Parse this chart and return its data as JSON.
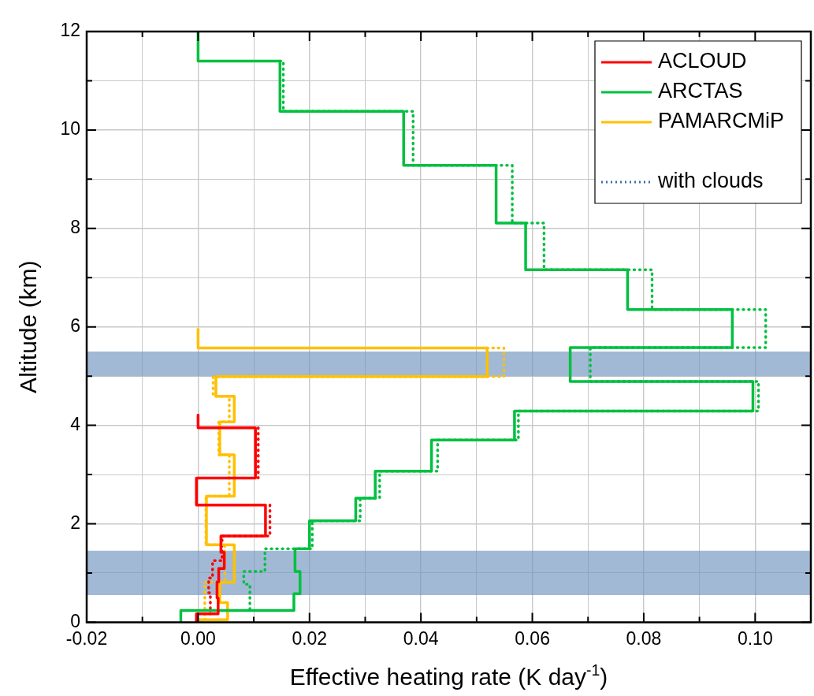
{
  "chart_data": {
    "type": "line",
    "xlabel": "Effective heating rate (K day$^{-1}$)",
    "ylabel": "Altitude (km)",
    "xlim": [
      -0.02,
      0.11
    ],
    "ylim": [
      0,
      12
    ],
    "xticks": [
      {
        "value": -0.02,
        "label": "-0.02"
      },
      {
        "value": -0.01,
        "label": null
      },
      {
        "value": 0,
        "label": "0.00"
      },
      {
        "value": 0.01,
        "label": null
      },
      {
        "value": 0.02,
        "label": "0.02"
      },
      {
        "value": 0.03,
        "label": null
      },
      {
        "value": 0.04,
        "label": "0.04"
      },
      {
        "value": 0.05,
        "label": null
      },
      {
        "value": 0.06,
        "label": "0.06"
      },
      {
        "value": 0.07,
        "label": null
      },
      {
        "value": 0.08,
        "label": "0.08"
      },
      {
        "value": 0.09,
        "label": null
      },
      {
        "value": 0.1,
        "label": "0.10"
      }
    ],
    "yticks": [
      0,
      {
        "value": 1,
        "label": null
      },
      2,
      {
        "value": 3,
        "label": null
      },
      4,
      {
        "value": 5,
        "label": null
      },
      6,
      {
        "value": 7,
        "label": null
      },
      8,
      {
        "value": 9,
        "label": null
      },
      10,
      {
        "value": 11,
        "label": null
      },
      12
    ],
    "grid": true,
    "legend": "top right",
    "marker": "none",
    "bands": [
      {
        "axis": "y",
        "from": 0.55,
        "to": 1.45,
        "color": "#6e93bd"
      },
      {
        "axis": "y",
        "from": 5.0,
        "to": 5.5,
        "color": "#6e93bd"
      }
    ],
    "series": [
      {
        "name": "ACLOUD",
        "color": "#ff0000",
        "line_style": "solid",
        "x": [
          0,
          0,
          0.0103,
          0.0103,
          -0.0003,
          -0.0003,
          0.0121,
          0.0121,
          0.0041,
          0.0041,
          0.0047,
          0.0047,
          0.0037,
          0.0037,
          0.0034,
          0.0034,
          0.0036,
          0.0036,
          -0.0003,
          -0.0003
        ],
        "values": [
          4.21,
          3.95,
          3.95,
          2.93,
          2.93,
          2.38,
          2.38,
          1.75,
          1.75,
          1.42,
          1.42,
          1.09,
          1.09,
          0.82,
          0.82,
          0.49,
          0.49,
          0.17,
          0.17,
          0
        ]
      },
      {
        "name": "ARCTAS",
        "color": "#00c040",
        "line_style": "solid",
        "x": [
          0,
          0,
          0.0147,
          0.0147,
          0.0369,
          0.0369,
          0.0535,
          0.0535,
          0.0588,
          0.0588,
          0.0771,
          0.0771,
          0.0959,
          0.0959,
          0.0668,
          0.0668,
          0.0996,
          0.0996,
          0.0568,
          0.0568,
          0.0419,
          0.0419,
          0.0318,
          0.0318,
          0.0283,
          0.0283,
          0.02,
          0.02,
          0.0174,
          0.0174,
          0.0183,
          0.0183,
          0.0172,
          0.0172,
          -0.0031,
          -0.0031
        ],
        "values": [
          12,
          11.4,
          11.4,
          10.38,
          10.38,
          9.28,
          9.28,
          8.11,
          8.11,
          7.16,
          7.16,
          6.35,
          6.35,
          5.58,
          5.58,
          4.89,
          4.89,
          4.29,
          4.29,
          3.7,
          3.7,
          3.07,
          3.07,
          2.52,
          2.52,
          2.06,
          2.06,
          1.49,
          1.49,
          1.03,
          1.03,
          0.58,
          0.58,
          0.24,
          0.24,
          0
        ]
      },
      {
        "name": "PAMARCMiP",
        "color": "#ffc000",
        "line_style": "solid",
        "x": [
          0,
          0,
          0.0519,
          0.0519,
          0.0032,
          0.0032,
          0.0065,
          0.0065,
          0.0039,
          0.0039,
          0.0065,
          0.0065,
          0.0015,
          0.0015,
          0.0065,
          0.0065,
          0.0039,
          0.0039,
          0.0053,
          0.0053,
          0,
          0
        ],
        "values": [
          5.95,
          5.57,
          5.57,
          4.99,
          4.99,
          4.59,
          4.59,
          4.07,
          4.07,
          3.4,
          3.4,
          2.56,
          2.56,
          1.57,
          1.57,
          0.81,
          0.81,
          0.4,
          0.4,
          0.05,
          0.05,
          0
        ]
      },
      {
        "color": "#ff0000",
        "line_style": "dotted",
        "x": [
          0.0108,
          0.0108,
          null,
          0.0129,
          0.0129,
          0.0043,
          0.0043,
          0.0026,
          0.0026,
          0.0019,
          0.0019,
          0.0022,
          0.0022
        ],
        "values": [
          3.95,
          2.93,
          null,
          2.38,
          1.75,
          1.75,
          1.25,
          1.25,
          0.9,
          0.9,
          0.6,
          0.6,
          0.17
        ]
      },
      {
        "color": "#00c040",
        "line_style": "dotted",
        "x": [
          0.0147,
          0.0153,
          0.0153,
          0.0386,
          0.0386,
          0.0564,
          0.0564,
          0.0621,
          0.0621,
          0.0815,
          0.0815,
          0.1019,
          0.1019,
          0.0704,
          0.0704,
          0.1006,
          0.1006,
          0.0575,
          0.0575,
          0.043,
          0.043,
          0.0326,
          0.0326,
          0.0291,
          0.0291,
          0.0205,
          0.0205,
          0.012,
          0.012,
          0.0082,
          0.0082,
          0.0093,
          0.0093
        ],
        "values": [
          11.4,
          11.4,
          10.38,
          10.38,
          9.28,
          9.28,
          8.11,
          8.11,
          7.16,
          7.16,
          6.35,
          6.35,
          5.58,
          5.58,
          4.89,
          4.89,
          4.29,
          4.29,
          3.7,
          3.7,
          3.07,
          3.07,
          2.52,
          2.52,
          2.06,
          2.06,
          1.49,
          1.49,
          1.03,
          1.03,
          0.77,
          0.77,
          0.24
        ]
      },
      {
        "color": "#ffc000",
        "line_style": "dotted",
        "x": [
          0.0519,
          0.0549,
          0.0549,
          0.0027,
          0.0027,
          0.0056,
          0.0056,
          0.0037,
          0.0037,
          0.0056,
          0.0056,
          0.0014,
          0.0014,
          0.0048,
          0.0048,
          0.0012,
          0.0012
        ],
        "values": [
          5.57,
          5.57,
          4.99,
          4.99,
          4.59,
          4.59,
          4.07,
          4.07,
          3.4,
          3.4,
          2.56,
          2.56,
          1.57,
          1.57,
          0.81,
          0.81,
          0.05
        ]
      },
      {
        "name": "with clouds",
        "color": "#3d6bb0",
        "line_style": "dotted"
      }
    ]
  }
}
